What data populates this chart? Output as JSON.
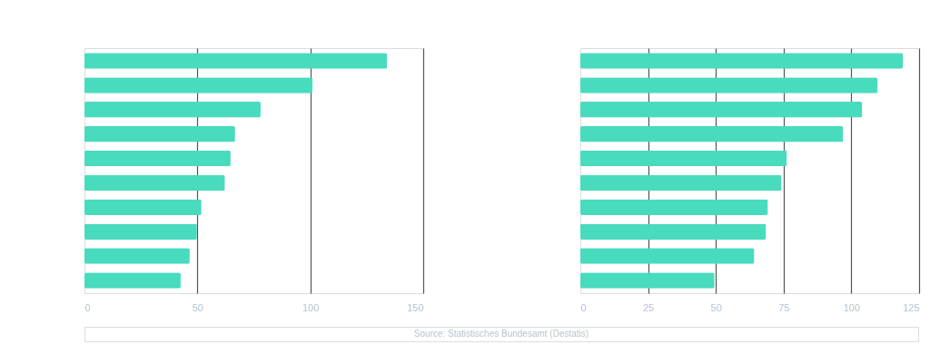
{
  "chart_data": [
    {
      "type": "bar",
      "orientation": "horizontal",
      "categories": [
        null,
        null,
        null,
        null,
        null,
        null,
        null,
        null,
        null,
        null
      ],
      "values": [
        134,
        101,
        78,
        66.7,
        64.7,
        62.2,
        51.8,
        49.8,
        46.6,
        42.6
      ],
      "color": "#48dbbe",
      "xlim": [
        0,
        150
      ],
      "xticks": [
        0,
        50,
        100,
        150
      ],
      "grid": "x",
      "tick_labels": "x",
      "annotations": [
        "Source: Statistisches Bundesamt (Destatis)"
      ]
    },
    {
      "type": "bar",
      "orientation": "horizontal",
      "categories": [
        null,
        null,
        null,
        null,
        null,
        null,
        null,
        null,
        null,
        null
      ],
      "values": [
        119,
        109.7,
        104,
        97,
        76.2,
        74.2,
        69.2,
        68.5,
        64.2,
        49.5
      ],
      "color": "#48dbbe",
      "xlim": [
        0,
        125
      ],
      "xticks": [
        0,
        25,
        50,
        75,
        100,
        125
      ],
      "grid": "x",
      "tick_labels": "x"
    }
  ]
}
